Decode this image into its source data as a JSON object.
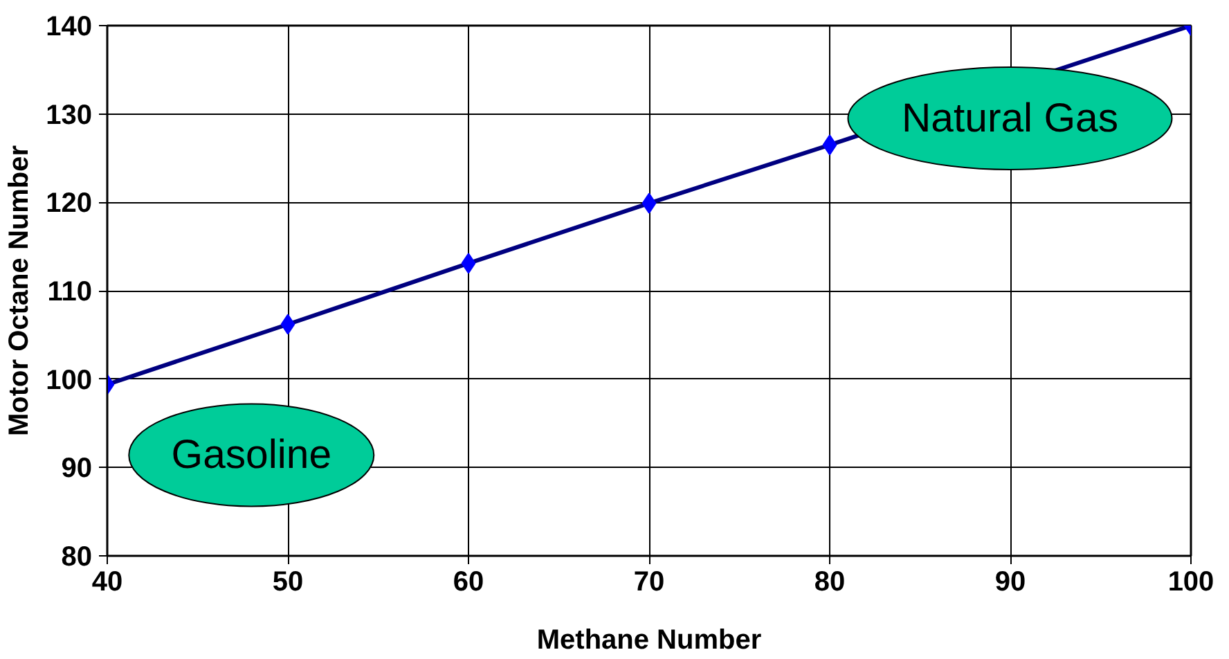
{
  "chart_data": {
    "type": "line",
    "xlabel": "Methane Number",
    "ylabel": "Motor Octane Number",
    "x": [
      40,
      50,
      60,
      70,
      80,
      100
    ],
    "series": [
      {
        "color": "#0000ff",
        "values": [
          99.4,
          106.2,
          113.1,
          119.9,
          126.5,
          140
        ]
      }
    ],
    "xlim": [
      40,
      100
    ],
    "ylim": [
      80,
      140
    ],
    "xticks": [
      40,
      50,
      60,
      70,
      80,
      90,
      100
    ],
    "yticks": [
      80,
      90,
      100,
      110,
      120,
      130,
      140
    ],
    "grid": true,
    "marker": "diamond",
    "line_style": "solid",
    "annotations": [
      "Natural Gas",
      "Gasoline"
    ]
  }
}
